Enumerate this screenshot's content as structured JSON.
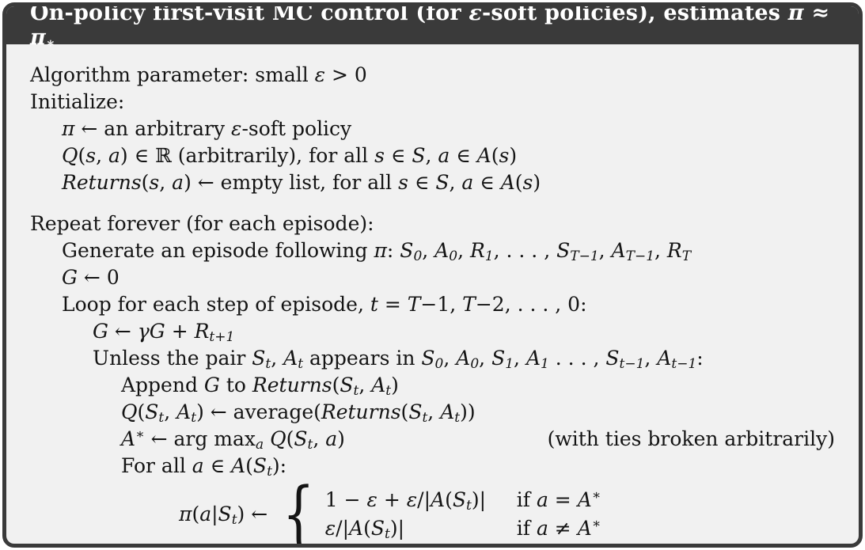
{
  "colors": {
    "header_bg": "#3a3a3a",
    "header_text": "#ffffff",
    "body_bg": "#f1f1f1",
    "border": "#3a3a3a",
    "text": "#141414"
  },
  "title": {
    "segments": [
      [
        "rm",
        "On-policy first-visit MC control (for "
      ],
      [
        "it",
        "ε"
      ],
      [
        "rm",
        "-soft policies), estimates "
      ],
      [
        "it",
        "π"
      ],
      [
        "rm",
        " ≈ "
      ],
      [
        "it",
        "π"
      ],
      [
        "sub",
        "∗"
      ]
    ]
  },
  "lines": [
    {
      "indent": 0,
      "segments": [
        [
          "rm",
          "Algorithm parameter: small "
        ],
        [
          "it",
          "ε"
        ],
        [
          "rm",
          " > 0"
        ]
      ]
    },
    {
      "indent": 0,
      "segments": [
        [
          "rm",
          "Initialize:"
        ]
      ]
    },
    {
      "indent": 1,
      "segments": [
        [
          "it",
          "π"
        ],
        [
          "rm",
          " ← an arbitrary "
        ],
        [
          "it",
          "ε"
        ],
        [
          "rm",
          "-soft policy"
        ]
      ]
    },
    {
      "indent": 1,
      "segments": [
        [
          "it",
          "Q"
        ],
        [
          "rm",
          "("
        ],
        [
          "it",
          "s"
        ],
        [
          "rm",
          ", "
        ],
        [
          "it",
          "a"
        ],
        [
          "rm",
          ") ∈ ℝ (arbitrarily), for all "
        ],
        [
          "it",
          "s"
        ],
        [
          "rm",
          " ∈ "
        ],
        [
          "scr",
          "S"
        ],
        [
          "rm",
          ", "
        ],
        [
          "it",
          "a"
        ],
        [
          "rm",
          " ∈ "
        ],
        [
          "scr",
          "A"
        ],
        [
          "rm",
          "("
        ],
        [
          "it",
          "s"
        ],
        [
          "rm",
          ")"
        ]
      ]
    },
    {
      "indent": 1,
      "segments": [
        [
          "it",
          "Returns"
        ],
        [
          "rm",
          "("
        ],
        [
          "it",
          "s"
        ],
        [
          "rm",
          ", "
        ],
        [
          "it",
          "a"
        ],
        [
          "rm",
          ") ← empty list, for all "
        ],
        [
          "it",
          "s"
        ],
        [
          "rm",
          " ∈ "
        ],
        [
          "scr",
          "S"
        ],
        [
          "rm",
          ", "
        ],
        [
          "it",
          "a"
        ],
        [
          "rm",
          " ∈ "
        ],
        [
          "scr",
          "A"
        ],
        [
          "rm",
          "("
        ],
        [
          "it",
          "s"
        ],
        [
          "rm",
          ")"
        ]
      ]
    },
    {
      "indent": 0,
      "gap": true,
      "segments": [
        [
          "rm",
          "Repeat forever (for each episode):"
        ]
      ]
    },
    {
      "indent": 1,
      "segments": [
        [
          "rm",
          "Generate an episode following "
        ],
        [
          "it",
          "π"
        ],
        [
          "rm",
          ": "
        ],
        [
          "it",
          "S"
        ],
        [
          "sub",
          "0"
        ],
        [
          "rm",
          ", "
        ],
        [
          "it",
          "A"
        ],
        [
          "sub",
          "0"
        ],
        [
          "rm",
          ", "
        ],
        [
          "it",
          "R"
        ],
        [
          "sub",
          "1"
        ],
        [
          "rm",
          ", . . . , "
        ],
        [
          "it",
          "S"
        ],
        [
          "sub",
          "T−1"
        ],
        [
          "rm",
          ", "
        ],
        [
          "it",
          "A"
        ],
        [
          "sub",
          "T−1"
        ],
        [
          "rm",
          ", "
        ],
        [
          "it",
          "R"
        ],
        [
          "sub",
          "T"
        ]
      ]
    },
    {
      "indent": 1,
      "segments": [
        [
          "it",
          "G"
        ],
        [
          "rm",
          " ← 0"
        ]
      ]
    },
    {
      "indent": 1,
      "segments": [
        [
          "rm",
          "Loop for each step of episode, "
        ],
        [
          "it",
          "t"
        ],
        [
          "rm",
          " = "
        ],
        [
          "it",
          "T"
        ],
        [
          "rm",
          "−1, "
        ],
        [
          "it",
          "T"
        ],
        [
          "rm",
          "−2, . . . , 0:"
        ]
      ]
    },
    {
      "indent": 2,
      "segments": [
        [
          "it",
          "G"
        ],
        [
          "rm",
          " ← "
        ],
        [
          "it",
          "γG"
        ],
        [
          "rm",
          " + "
        ],
        [
          "it",
          "R"
        ],
        [
          "sub",
          "t+1"
        ]
      ]
    },
    {
      "indent": 2,
      "segments": [
        [
          "rm",
          "Unless the pair "
        ],
        [
          "it",
          "S"
        ],
        [
          "sub",
          "t"
        ],
        [
          "rm",
          ", "
        ],
        [
          "it",
          "A"
        ],
        [
          "sub",
          "t"
        ],
        [
          "rm",
          " appears in "
        ],
        [
          "it",
          "S"
        ],
        [
          "sub",
          "0"
        ],
        [
          "rm",
          ", "
        ],
        [
          "it",
          "A"
        ],
        [
          "sub",
          "0"
        ],
        [
          "rm",
          ", "
        ],
        [
          "it",
          "S"
        ],
        [
          "sub",
          "1"
        ],
        [
          "rm",
          ", "
        ],
        [
          "it",
          "A"
        ],
        [
          "sub",
          "1"
        ],
        [
          "rm",
          " . . . , "
        ],
        [
          "it",
          "S"
        ],
        [
          "sub",
          "t−1"
        ],
        [
          "rm",
          ", "
        ],
        [
          "it",
          "A"
        ],
        [
          "sub",
          "t−1"
        ],
        [
          "rm",
          ":"
        ]
      ]
    },
    {
      "indent": 3,
      "segments": [
        [
          "rm",
          "Append "
        ],
        [
          "it",
          "G"
        ],
        [
          "rm",
          " to "
        ],
        [
          "it",
          "Returns"
        ],
        [
          "rm",
          "("
        ],
        [
          "it",
          "S"
        ],
        [
          "sub",
          "t"
        ],
        [
          "rm",
          ", "
        ],
        [
          "it",
          "A"
        ],
        [
          "sub",
          "t"
        ],
        [
          "rm",
          ")"
        ]
      ]
    },
    {
      "indent": 3,
      "segments": [
        [
          "it",
          "Q"
        ],
        [
          "rm",
          "("
        ],
        [
          "it",
          "S"
        ],
        [
          "sub",
          "t"
        ],
        [
          "rm",
          ", "
        ],
        [
          "it",
          "A"
        ],
        [
          "sub",
          "t"
        ],
        [
          "rm",
          ") ← average("
        ],
        [
          "it",
          "Returns"
        ],
        [
          "rm",
          "("
        ],
        [
          "it",
          "S"
        ],
        [
          "sub",
          "t"
        ],
        [
          "rm",
          ", "
        ],
        [
          "it",
          "A"
        ],
        [
          "sub",
          "t"
        ],
        [
          "rm",
          "))"
        ]
      ]
    },
    {
      "indent": 3,
      "right": "(with ties broken arbitrarily)",
      "segments": [
        [
          "it",
          "A"
        ],
        [
          "sup",
          "∗"
        ],
        [
          "rm",
          " ← arg max"
        ],
        [
          "sub",
          "a"
        ],
        [
          "rm",
          " "
        ],
        [
          "it",
          "Q"
        ],
        [
          "rm",
          "("
        ],
        [
          "it",
          "S"
        ],
        [
          "sub",
          "t"
        ],
        [
          "rm",
          ", "
        ],
        [
          "it",
          "a"
        ],
        [
          "rm",
          ")"
        ]
      ]
    },
    {
      "indent": 3,
      "segments": [
        [
          "rm",
          "For all "
        ],
        [
          "it",
          "a"
        ],
        [
          "rm",
          " ∈ "
        ],
        [
          "scr",
          "A"
        ],
        [
          "rm",
          "("
        ],
        [
          "it",
          "S"
        ],
        [
          "sub",
          "t"
        ],
        [
          "rm",
          "):"
        ]
      ]
    },
    {
      "type": "cases",
      "lhs": [
        [
          "it",
          "π"
        ],
        [
          "rm",
          "("
        ],
        [
          "it",
          "a"
        ],
        [
          "rm",
          "|"
        ],
        [
          "it",
          "S"
        ],
        [
          "sub",
          "t"
        ],
        [
          "rm",
          ") ← "
        ]
      ],
      "brace": "{",
      "rows": [
        {
          "value": [
            [
              "rm",
              "1 − "
            ],
            [
              "it",
              "ε"
            ],
            [
              "rm",
              " + "
            ],
            [
              "it",
              "ε"
            ],
            [
              "rm",
              "/|"
            ],
            [
              "scr",
              "A"
            ],
            [
              "rm",
              "("
            ],
            [
              "it",
              "S"
            ],
            [
              "sub",
              "t"
            ],
            [
              "rm",
              ")|"
            ]
          ],
          "cond": [
            [
              "rm",
              "if "
            ],
            [
              "it",
              "a"
            ],
            [
              "rm",
              " = "
            ],
            [
              "it",
              "A"
            ],
            [
              "sup",
              "∗"
            ]
          ]
        },
        {
          "value": [
            [
              "it",
              "ε"
            ],
            [
              "rm",
              "/|"
            ],
            [
              "scr",
              "A"
            ],
            [
              "rm",
              "("
            ],
            [
              "it",
              "S"
            ],
            [
              "sub",
              "t"
            ],
            [
              "rm",
              ")|"
            ]
          ],
          "cond": [
            [
              "rm",
              "if "
            ],
            [
              "it",
              "a"
            ],
            [
              "rm",
              " ≠ "
            ],
            [
              "it",
              "A"
            ],
            [
              "sup",
              "∗"
            ]
          ]
        }
      ]
    }
  ]
}
